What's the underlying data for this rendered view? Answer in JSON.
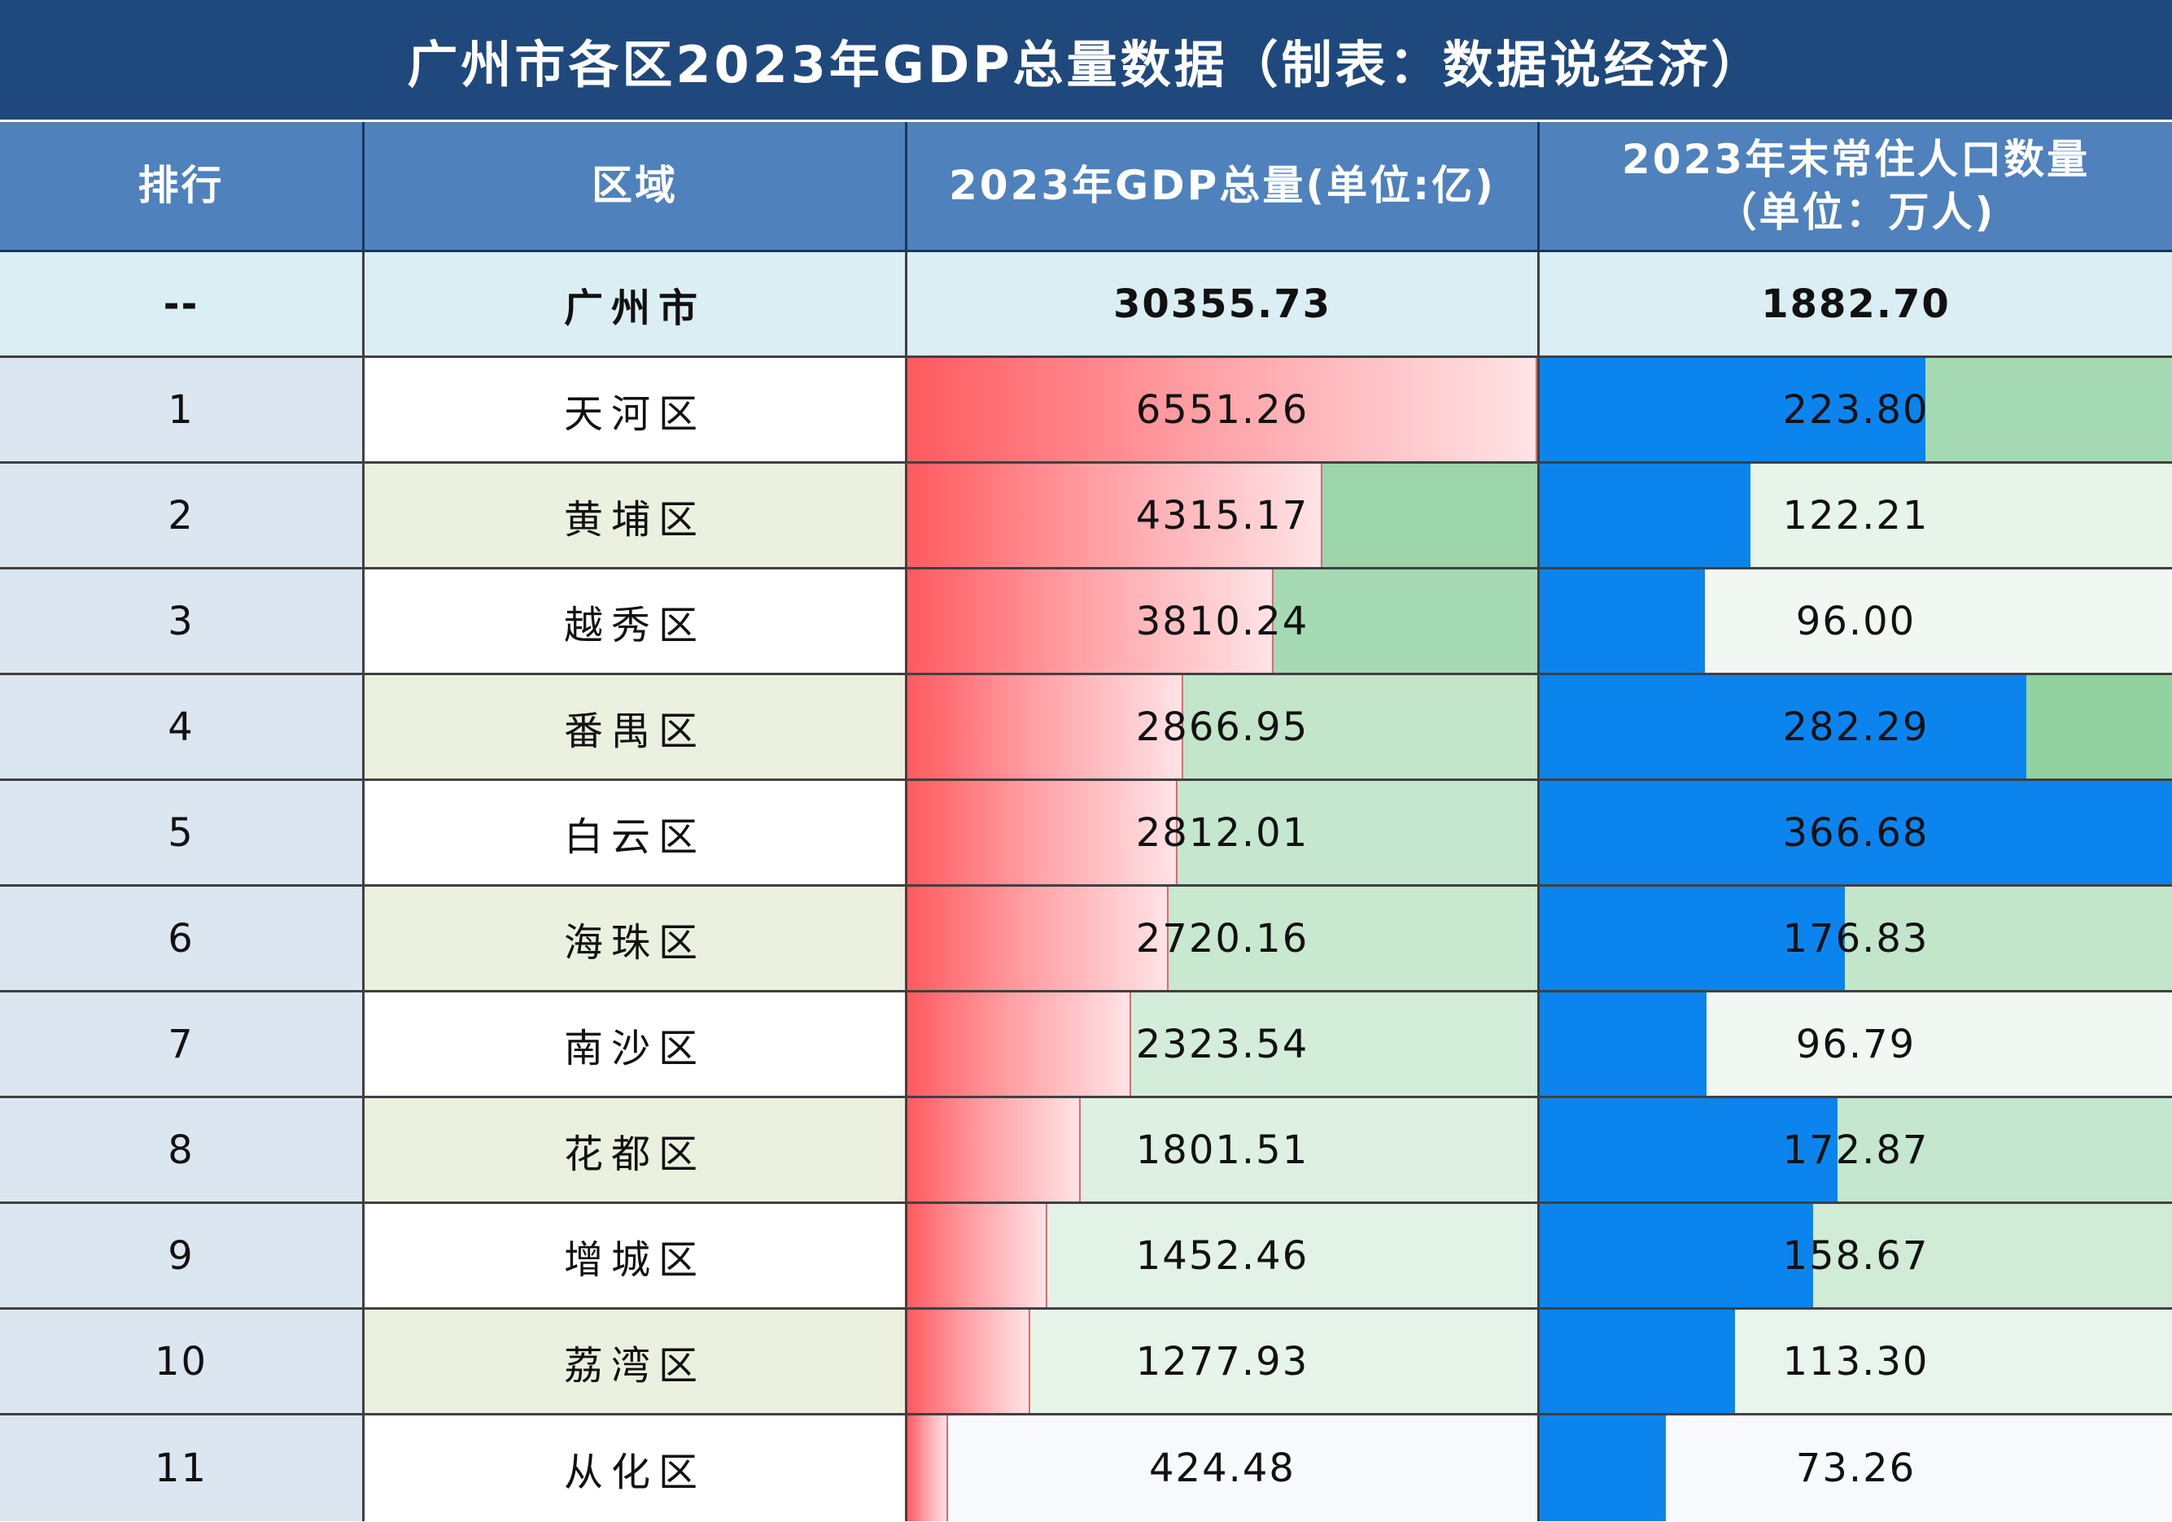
{
  "title": "广州市各区2023年GDP总量数据（制表：数据说经济）",
  "headers": {
    "rank": "排行",
    "district": "区域",
    "gdp": "2023年GDP总量(单位:亿)",
    "pop_line1": "2023年末常住人口数量",
    "pop_line2": "（单位：万人)"
  },
  "total": {
    "rank": "--",
    "district": "广州市",
    "gdp": "30355.73",
    "pop": "1882.70"
  },
  "colors": {
    "title_bg": "#1f497d",
    "header_bg": "#4f81bd",
    "gdp_bar_start": "#ff5a5f",
    "gdp_bar_end": "#ffe3e6",
    "pop_bar": "#0b84ee"
  },
  "chart_data": {
    "type": "table",
    "title": "广州市各区2023年GDP总量数据（制表：数据说经济）",
    "columns": [
      "排行",
      "区域",
      "2023年GDP总量(单位:亿)",
      "2023年末常住人口数量（单位：万人)"
    ],
    "rows": [
      {
        "rank": "1",
        "district": "天河区",
        "gdp": "6551.26",
        "gdp_value": 6551.26,
        "pop": "223.80",
        "pop_value": 223.8,
        "gdp_bg": "#c3e6cb",
        "pop_bg": "#a6dab5",
        "district_bg": "#ffffff"
      },
      {
        "rank": "2",
        "district": "黄埔区",
        "gdp": "4315.17",
        "gdp_value": 4315.17,
        "pop": "122.21",
        "pop_value": 122.21,
        "gdp_bg": "#9cd5a9",
        "pop_bg": "#e6f4ea",
        "district_bg": "#ebf1de"
      },
      {
        "rank": "3",
        "district": "越秀区",
        "gdp": "3810.24",
        "gdp_value": 3810.24,
        "pop": "96.00",
        "pop_value": 96.0,
        "gdp_bg": "#a6dab5",
        "pop_bg": "#f1f8f3",
        "district_bg": "#ffffff"
      },
      {
        "rank": "4",
        "district": "番禺区",
        "gdp": "2866.95",
        "gdp_value": 2866.95,
        "pop": "282.29",
        "pop_value": 282.29,
        "gdp_bg": "#c3e6cb",
        "pop_bg": "#92d2a0",
        "district_bg": "#ebf1de"
      },
      {
        "rank": "5",
        "district": "白云区",
        "gdp": "2812.01",
        "gdp_value": 2812.01,
        "pop": "366.68",
        "pop_value": 366.68,
        "gdp_bg": "#c6e7cf",
        "pop_bg": "#7fc98f",
        "district_bg": "#ffffff"
      },
      {
        "rank": "6",
        "district": "海珠区",
        "gdp": "2720.16",
        "gdp_value": 2720.16,
        "pop": "176.83",
        "pop_value": 176.83,
        "gdp_bg": "#c8e8d0",
        "pop_bg": "#c3e6cb",
        "district_bg": "#ebf1de"
      },
      {
        "rank": "7",
        "district": "南沙区",
        "gdp": "2323.54",
        "gdp_value": 2323.54,
        "pop": "96.79",
        "pop_value": 96.79,
        "gdp_bg": "#d4edda",
        "pop_bg": "#f1f8f3",
        "district_bg": "#ffffff"
      },
      {
        "rank": "8",
        "district": "花都区",
        "gdp": "1801.51",
        "gdp_value": 1801.51,
        "pop": "172.87",
        "pop_value": 172.87,
        "gdp_bg": "#ddf0e2",
        "pop_bg": "#c6e7cf",
        "district_bg": "#ebf1de"
      },
      {
        "rank": "9",
        "district": "增城区",
        "gdp": "1452.46",
        "gdp_value": 1452.46,
        "pop": "158.67",
        "pop_value": 158.67,
        "gdp_bg": "#e3f2e7",
        "pop_bg": "#d0ebd6",
        "district_bg": "#ffffff"
      },
      {
        "rank": "10",
        "district": "荔湾区",
        "gdp": "1277.93",
        "gdp_value": 1277.93,
        "pop": "113.30",
        "pop_value": 113.3,
        "gdp_bg": "#e6f4ea",
        "pop_bg": "#e8f5ec",
        "district_bg": "#ebf1de"
      },
      {
        "rank": "11",
        "district": "从化区",
        "gdp": "424.48",
        "gdp_value": 424.48,
        "pop": "73.26",
        "pop_value": 73.26,
        "gdp_bg": "#f8f9fd",
        "pop_bg": "#f8f9fd",
        "district_bg": "#ffffff"
      }
    ],
    "gdp_bar_max": 6551.26,
    "pop_bar_max": 366.68
  }
}
